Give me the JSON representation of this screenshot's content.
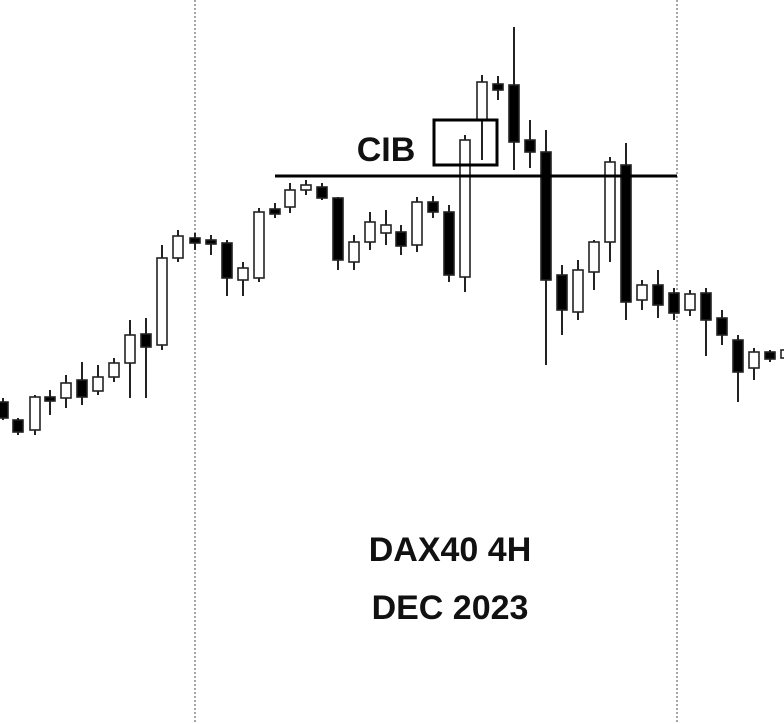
{
  "annotation": "CIB",
  "caption": {
    "line1": "DAX40 4H",
    "line2": "DEC 2023"
  }
}
